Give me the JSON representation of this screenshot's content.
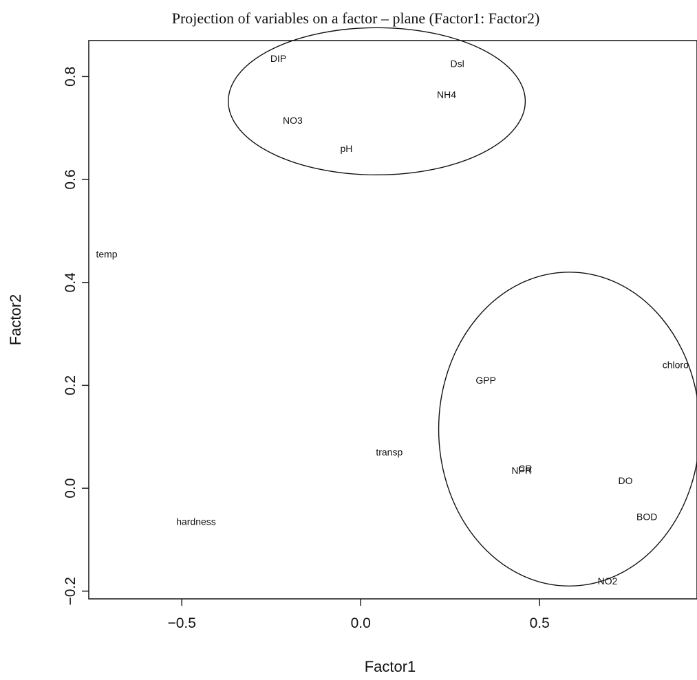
{
  "chart_data": {
    "type": "scatter",
    "title": "Projection of variables on a factor – plane (Factor1: Factor2)",
    "xlabel": "Factor1",
    "ylabel": "Factor2",
    "xlim": [
      -0.76,
      0.94
    ],
    "ylim": [
      -0.215,
      0.87
    ],
    "xticks": [
      -0.5,
      0.0,
      0.5
    ],
    "xtick_labels": [
      "−0.5",
      "0.0",
      "0.5"
    ],
    "yticks": [
      -0.2,
      0.0,
      0.2,
      0.4,
      0.6,
      0.8
    ],
    "ytick_labels": [
      "−0.2",
      "0.0",
      "0.2",
      "0.4",
      "0.6",
      "0.8"
    ],
    "grid": false,
    "legend": "none",
    "points": [
      {
        "label": "DIP",
        "x": -0.23,
        "y": 0.835
      },
      {
        "label": "Dsl",
        "x": 0.27,
        "y": 0.825
      },
      {
        "label": "NH4",
        "x": 0.24,
        "y": 0.765
      },
      {
        "label": "NO3",
        "x": -0.19,
        "y": 0.715
      },
      {
        "label": "pH",
        "x": -0.04,
        "y": 0.66
      },
      {
        "label": "temp",
        "x": -0.71,
        "y": 0.455
      },
      {
        "label": "chloro",
        "x": 0.88,
        "y": 0.24
      },
      {
        "label": "GPP",
        "x": 0.35,
        "y": 0.21
      },
      {
        "label": "transp",
        "x": 0.08,
        "y": 0.07
      },
      {
        "label": "NPR",
        "x": 0.45,
        "y": 0.035
      },
      {
        "label": "CR",
        "x": 0.46,
        "y": 0.038
      },
      {
        "label": "DO",
        "x": 0.74,
        "y": 0.015
      },
      {
        "label": "BOD",
        "x": 0.8,
        "y": -0.055
      },
      {
        "label": "hardness",
        "x": -0.46,
        "y": -0.065
      },
      {
        "label": "NO2",
        "x": 0.69,
        "y": -0.18
      }
    ],
    "annotations": [
      {
        "shape": "ellipse",
        "cx": 0.045,
        "cy": 0.752,
        "rx": 0.415,
        "ry": 0.143
      },
      {
        "shape": "ellipse",
        "cx": 0.583,
        "cy": 0.115,
        "rx": 0.365,
        "ry": 0.305
      }
    ]
  }
}
